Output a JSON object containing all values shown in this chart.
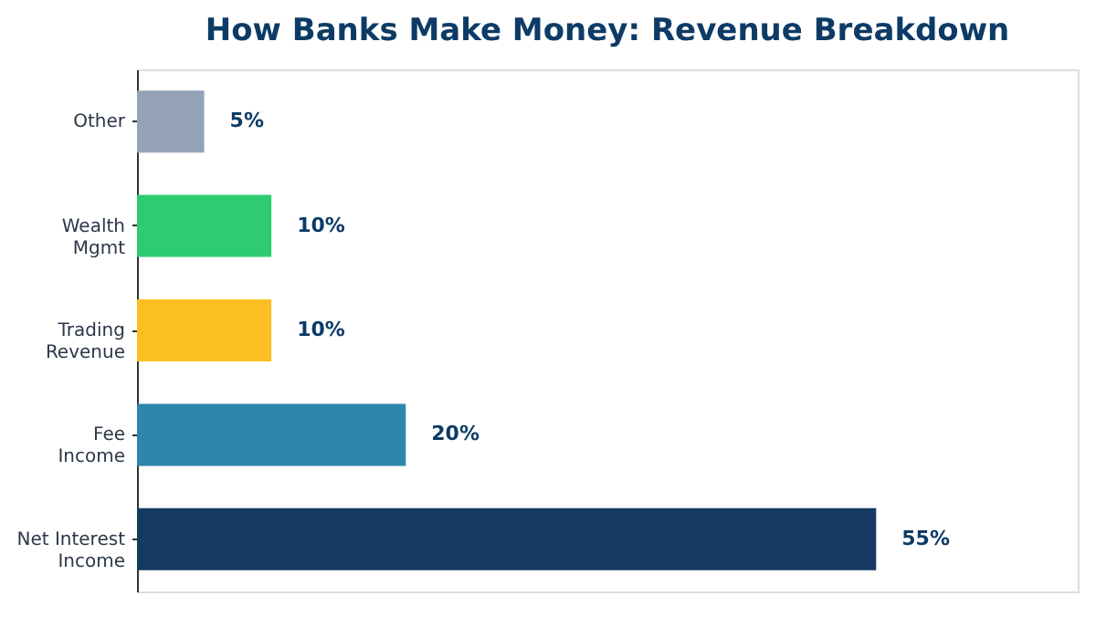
{
  "chart_data": {
    "type": "bar",
    "orientation": "horizontal",
    "title": "How Banks Make Money: Revenue Breakdown",
    "categories": [
      "Other",
      "Wealth\nMgmt",
      "Trading\nRevenue",
      "Fee\nIncome",
      "Net Interest\nIncome"
    ],
    "values": [
      5,
      10,
      10,
      20,
      55
    ],
    "colors": [
      "#94a3b8",
      "#2ecc71",
      "#fbbf24",
      "#2e86ab",
      "#143a62"
    ],
    "value_labels": [
      "5%",
      "10%",
      "10%",
      "20%",
      "55%"
    ],
    "xlim": [
      0,
      70
    ],
    "tick_labels": "y"
  }
}
